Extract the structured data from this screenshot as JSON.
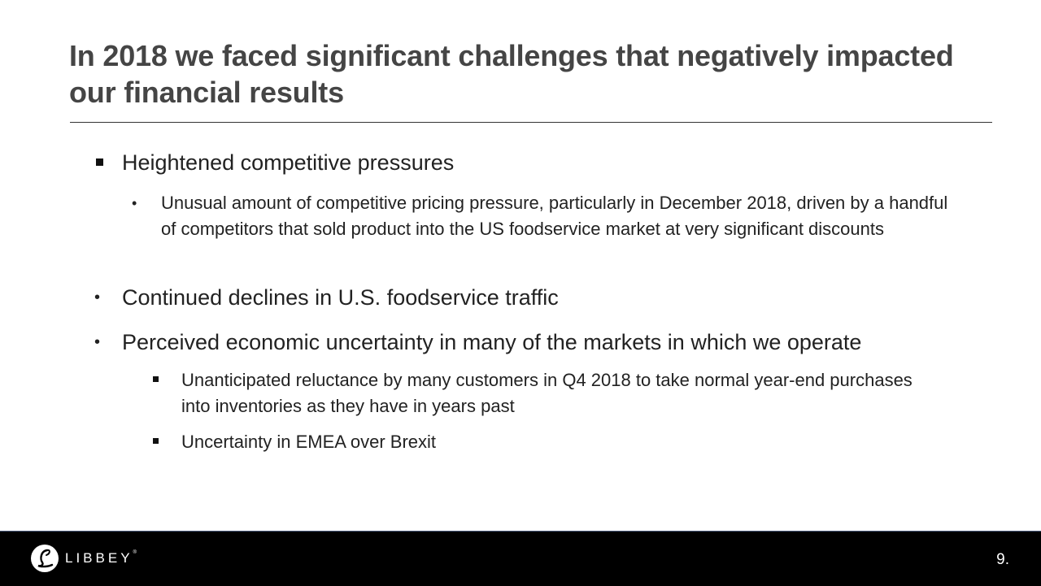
{
  "slide": {
    "title": "In 2018 we faced significant challenges that negatively impacted our financial results",
    "bullets": [
      {
        "text": "Heightened competitive pressures",
        "children": [
          {
            "text": "Unusual amount of competitive pricing pressure, particularly in December 2018, driven by a handful of competitors that sold product into the US foodservice market at very significant discounts"
          }
        ]
      },
      {
        "text": "Continued declines in U.S. foodservice traffic"
      },
      {
        "text": "Perceived economic uncertainty in many of the markets in which we operate",
        "children": [
          {
            "text": "Unanticipated reluctance by many customers in Q4 2018 to take normal year-end purchases into inventories as they have in years past"
          },
          {
            "text": "Uncertainty in EMEA over Brexit"
          }
        ]
      }
    ]
  },
  "footer": {
    "logo_text": "LIBBEY",
    "logo_mark": "®",
    "page_number": "9."
  },
  "colors": {
    "title": "#454545",
    "body_text": "#222222",
    "footer_bg": "#000000",
    "footer_text": "#ffffff"
  }
}
